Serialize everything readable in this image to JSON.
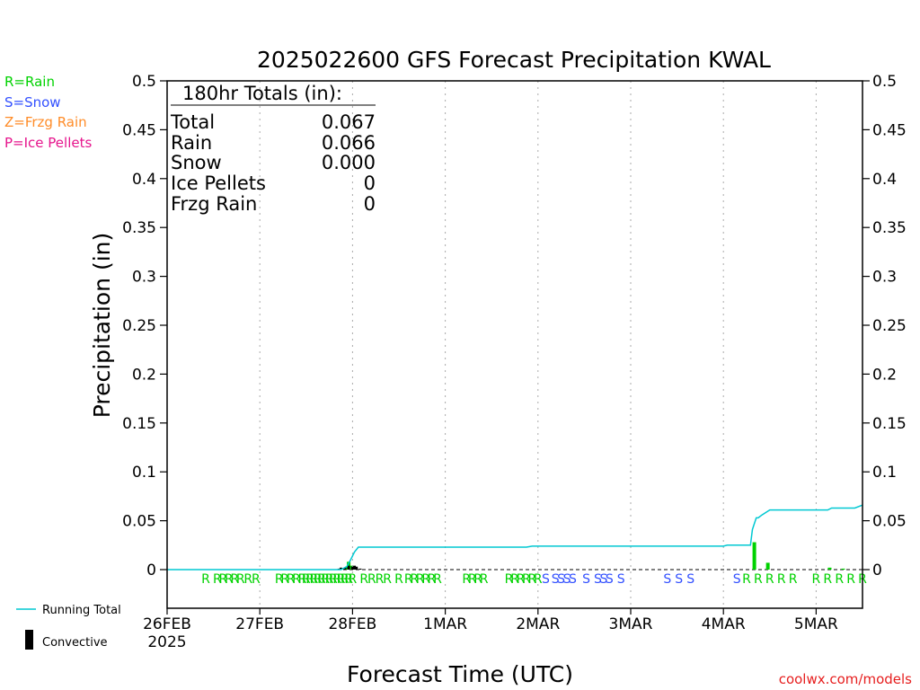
{
  "chart_data": {
    "type": "bar",
    "title": "2025022600 GFS Forecast Precipitation KWAL",
    "xlabel": "Forecast Time (UTC)",
    "ylabel": "Precipitation (in)",
    "ylim": [
      0,
      0.5
    ],
    "y_ticks": [
      "0",
      "0.05",
      "0.1",
      "0.15",
      "0.2",
      "0.25",
      "0.3",
      "0.35",
      "0.4",
      "0.45",
      "0.5"
    ],
    "x_range_hours": [
      0,
      180
    ],
    "x_ticks": [
      {
        "hour": 0,
        "label": "26FEB",
        "sub": "2025"
      },
      {
        "hour": 24,
        "label": "27FEB"
      },
      {
        "hour": 48,
        "label": "28FEB"
      },
      {
        "hour": 72,
        "label": "1MAR"
      },
      {
        "hour": 96,
        "label": "2MAR"
      },
      {
        "hour": 120,
        "label": "3MAR"
      },
      {
        "hour": 144,
        "label": "4MAR"
      },
      {
        "hour": 168,
        "label": "5MAR"
      }
    ],
    "grid": "vertical dotted",
    "series": [
      {
        "name": "Running Total",
        "type": "line",
        "color": "#00c8d2",
        "x": [
          0,
          45.0,
          46.5,
          47.5,
          48.5,
          49.5,
          60,
          80,
          93,
          94.5,
          120,
          144,
          145,
          151,
          151.5,
          152.5,
          153,
          154,
          156,
          168,
          171,
          172,
          178,
          180
        ],
        "y": [
          0,
          0,
          0.003,
          0.01,
          0.018,
          0.023,
          0.023,
          0.023,
          0.023,
          0.024,
          0.024,
          0.024,
          0.025,
          0.025,
          0.041,
          0.053,
          0.053,
          0.056,
          0.061,
          0.061,
          0.061,
          0.063,
          0.063,
          0.066
        ]
      },
      {
        "name": "Rain",
        "type": "bar",
        "color": "#00d200",
        "x": [
          46.5,
          47.0,
          47.5,
          152.0,
          155.5,
          171.5,
          175.0
        ],
        "values": [
          0.003,
          0.008,
          0.004,
          0.028,
          0.007,
          0.002,
          0.001
        ]
      },
      {
        "name": "Convective",
        "type": "bar",
        "color": "#000000",
        "x": [
          44.5,
          45.0,
          46.0,
          47.0,
          48.0,
          48.5,
          49.0,
          50.0
        ],
        "values": [
          0.001,
          0.002,
          0.002,
          0.004,
          0.003,
          0.004,
          0.003,
          0.001
        ]
      }
    ],
    "ptype_markers": [
      {
        "hour": 10,
        "t": "R"
      },
      {
        "hour": 13,
        "t": "R"
      },
      {
        "hour": 14.5,
        "t": "R"
      },
      {
        "hour": 16,
        "t": "R"
      },
      {
        "hour": 17.5,
        "t": "R"
      },
      {
        "hour": 19,
        "t": "R"
      },
      {
        "hour": 21,
        "t": "R"
      },
      {
        "hour": 23,
        "t": "R"
      },
      {
        "hour": 29,
        "t": "R"
      },
      {
        "hour": 30.5,
        "t": "R"
      },
      {
        "hour": 32,
        "t": "R"
      },
      {
        "hour": 33.5,
        "t": "R"
      },
      {
        "hour": 35,
        "t": "R"
      },
      {
        "hour": 36,
        "t": "R"
      },
      {
        "hour": 37,
        "t": "R"
      },
      {
        "hour": 38,
        "t": "R"
      },
      {
        "hour": 39,
        "t": "R"
      },
      {
        "hour": 40,
        "t": "R"
      },
      {
        "hour": 41,
        "t": "R"
      },
      {
        "hour": 42,
        "t": "R"
      },
      {
        "hour": 43,
        "t": "R"
      },
      {
        "hour": 44,
        "t": "R"
      },
      {
        "hour": 45,
        "t": "R"
      },
      {
        "hour": 46,
        "t": "R"
      },
      {
        "hour": 47,
        "t": "R"
      },
      {
        "hour": 48,
        "t": "R"
      },
      {
        "hour": 51,
        "t": "R"
      },
      {
        "hour": 53,
        "t": "R"
      },
      {
        "hour": 55,
        "t": "R"
      },
      {
        "hour": 57,
        "t": "R"
      },
      {
        "hour": 60,
        "t": "R"
      },
      {
        "hour": 62.5,
        "t": "R"
      },
      {
        "hour": 64,
        "t": "R"
      },
      {
        "hour": 65.5,
        "t": "R"
      },
      {
        "hour": 67,
        "t": "R"
      },
      {
        "hour": 68.5,
        "t": "R"
      },
      {
        "hour": 70,
        "t": "R"
      },
      {
        "hour": 77.5,
        "t": "R"
      },
      {
        "hour": 79,
        "t": "R"
      },
      {
        "hour": 80.5,
        "t": "R"
      },
      {
        "hour": 82,
        "t": "R"
      },
      {
        "hour": 88.5,
        "t": "R"
      },
      {
        "hour": 90,
        "t": "R"
      },
      {
        "hour": 91.5,
        "t": "R"
      },
      {
        "hour": 93,
        "t": "R"
      },
      {
        "hour": 94.5,
        "t": "R"
      },
      {
        "hour": 96,
        "t": "R"
      },
      {
        "hour": 98,
        "t": "S"
      },
      {
        "hour": 100.5,
        "t": "S"
      },
      {
        "hour": 102,
        "t": "S"
      },
      {
        "hour": 103.5,
        "t": "S"
      },
      {
        "hour": 105,
        "t": "S"
      },
      {
        "hour": 108.5,
        "t": "S"
      },
      {
        "hour": 111.5,
        "t": "S"
      },
      {
        "hour": 113,
        "t": "S"
      },
      {
        "hour": 114.5,
        "t": "S"
      },
      {
        "hour": 117.5,
        "t": "S"
      },
      {
        "hour": 129.5,
        "t": "S"
      },
      {
        "hour": 132.5,
        "t": "S"
      },
      {
        "hour": 135.5,
        "t": "S"
      },
      {
        "hour": 147.5,
        "t": "S"
      },
      {
        "hour": 150,
        "t": "R"
      },
      {
        "hour": 153,
        "t": "R"
      },
      {
        "hour": 156,
        "t": "R"
      },
      {
        "hour": 159,
        "t": "R"
      },
      {
        "hour": 162,
        "t": "R"
      },
      {
        "hour": 168,
        "t": "R"
      },
      {
        "hour": 171,
        "t": "R"
      },
      {
        "hour": 174,
        "t": "R"
      },
      {
        "hour": 177,
        "t": "R"
      },
      {
        "hour": 180,
        "t": "R"
      }
    ]
  },
  "ptype_colors": {
    "R": "#00d200",
    "S": "#3250ff",
    "Z": "#ff8c28",
    "P": "#e6148c"
  },
  "legend": {
    "rain": "R=Rain",
    "snow": "S=Snow",
    "frzg": "Z=Frzg Rain",
    "ice": "P=Ice Pellets",
    "running_total": "Running Total",
    "convective": "Convective"
  },
  "totals_box": {
    "header": "180hr Totals (in):",
    "rows": [
      {
        "label": "Total",
        "value": "0.067"
      },
      {
        "label": "Rain",
        "value": "0.066"
      },
      {
        "label": "Snow",
        "value": "0.000"
      },
      {
        "label": "Ice Pellets",
        "value": "0"
      },
      {
        "label": "Frzg Rain",
        "value": "0"
      }
    ]
  },
  "footer": {
    "credit": "coolwx.com/models"
  }
}
